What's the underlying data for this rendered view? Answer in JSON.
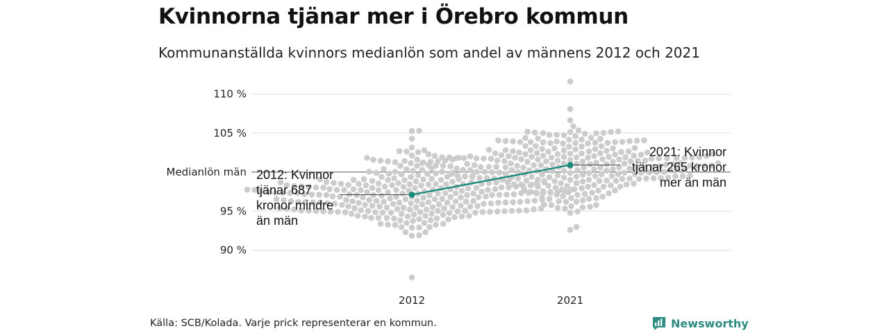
{
  "title": "Kvinnorna tjänar mer i Örebro kommun",
  "subtitle": "Kommunanställda kvinnors medianlön som andel av männens 2012 och 2021",
  "source": "Källa: SCB/Kolada. Varje prick representerar en kommun.",
  "brand": {
    "name": "Newsworthy",
    "icon": "newsworthy-logo-icon",
    "color": "#2e8b80"
  },
  "colors": {
    "dots": "#cccccc",
    "highlight": "#1a8a7a",
    "grid": "#dddddd",
    "reference": "#555555"
  },
  "chart_data": {
    "type": "scatter",
    "subtype": "beeswarm",
    "categories": [
      "2012",
      "2021"
    ],
    "y_ticks": [
      {
        "value": 90,
        "label": "90 %"
      },
      {
        "value": 95,
        "label": "95 %"
      },
      {
        "value": 105,
        "label": "105 %"
      },
      {
        "value": 110,
        "label": "110 %"
      }
    ],
    "reference_line": {
      "value": 100,
      "label": "Medianlön män"
    },
    "ylim": [
      85.5,
      112
    ],
    "grid": true,
    "highlight": {
      "values": [
        97.1,
        100.9
      ],
      "annotations": [
        "2012: Kvinnor\ntjänar 687\nkronor mindre\nän män",
        "2021: Kvinnor\ntjänar 265 kronor\nmer än män"
      ]
    },
    "swarm": {
      "2012": {
        "count": 290,
        "min": 86.5,
        "max": 105.3,
        "median": 97.0,
        "spread": 2.5
      },
      "2021": {
        "count": 290,
        "min": 92.6,
        "max": 111.6,
        "median": 101.0,
        "spread": 2.3
      }
    }
  }
}
